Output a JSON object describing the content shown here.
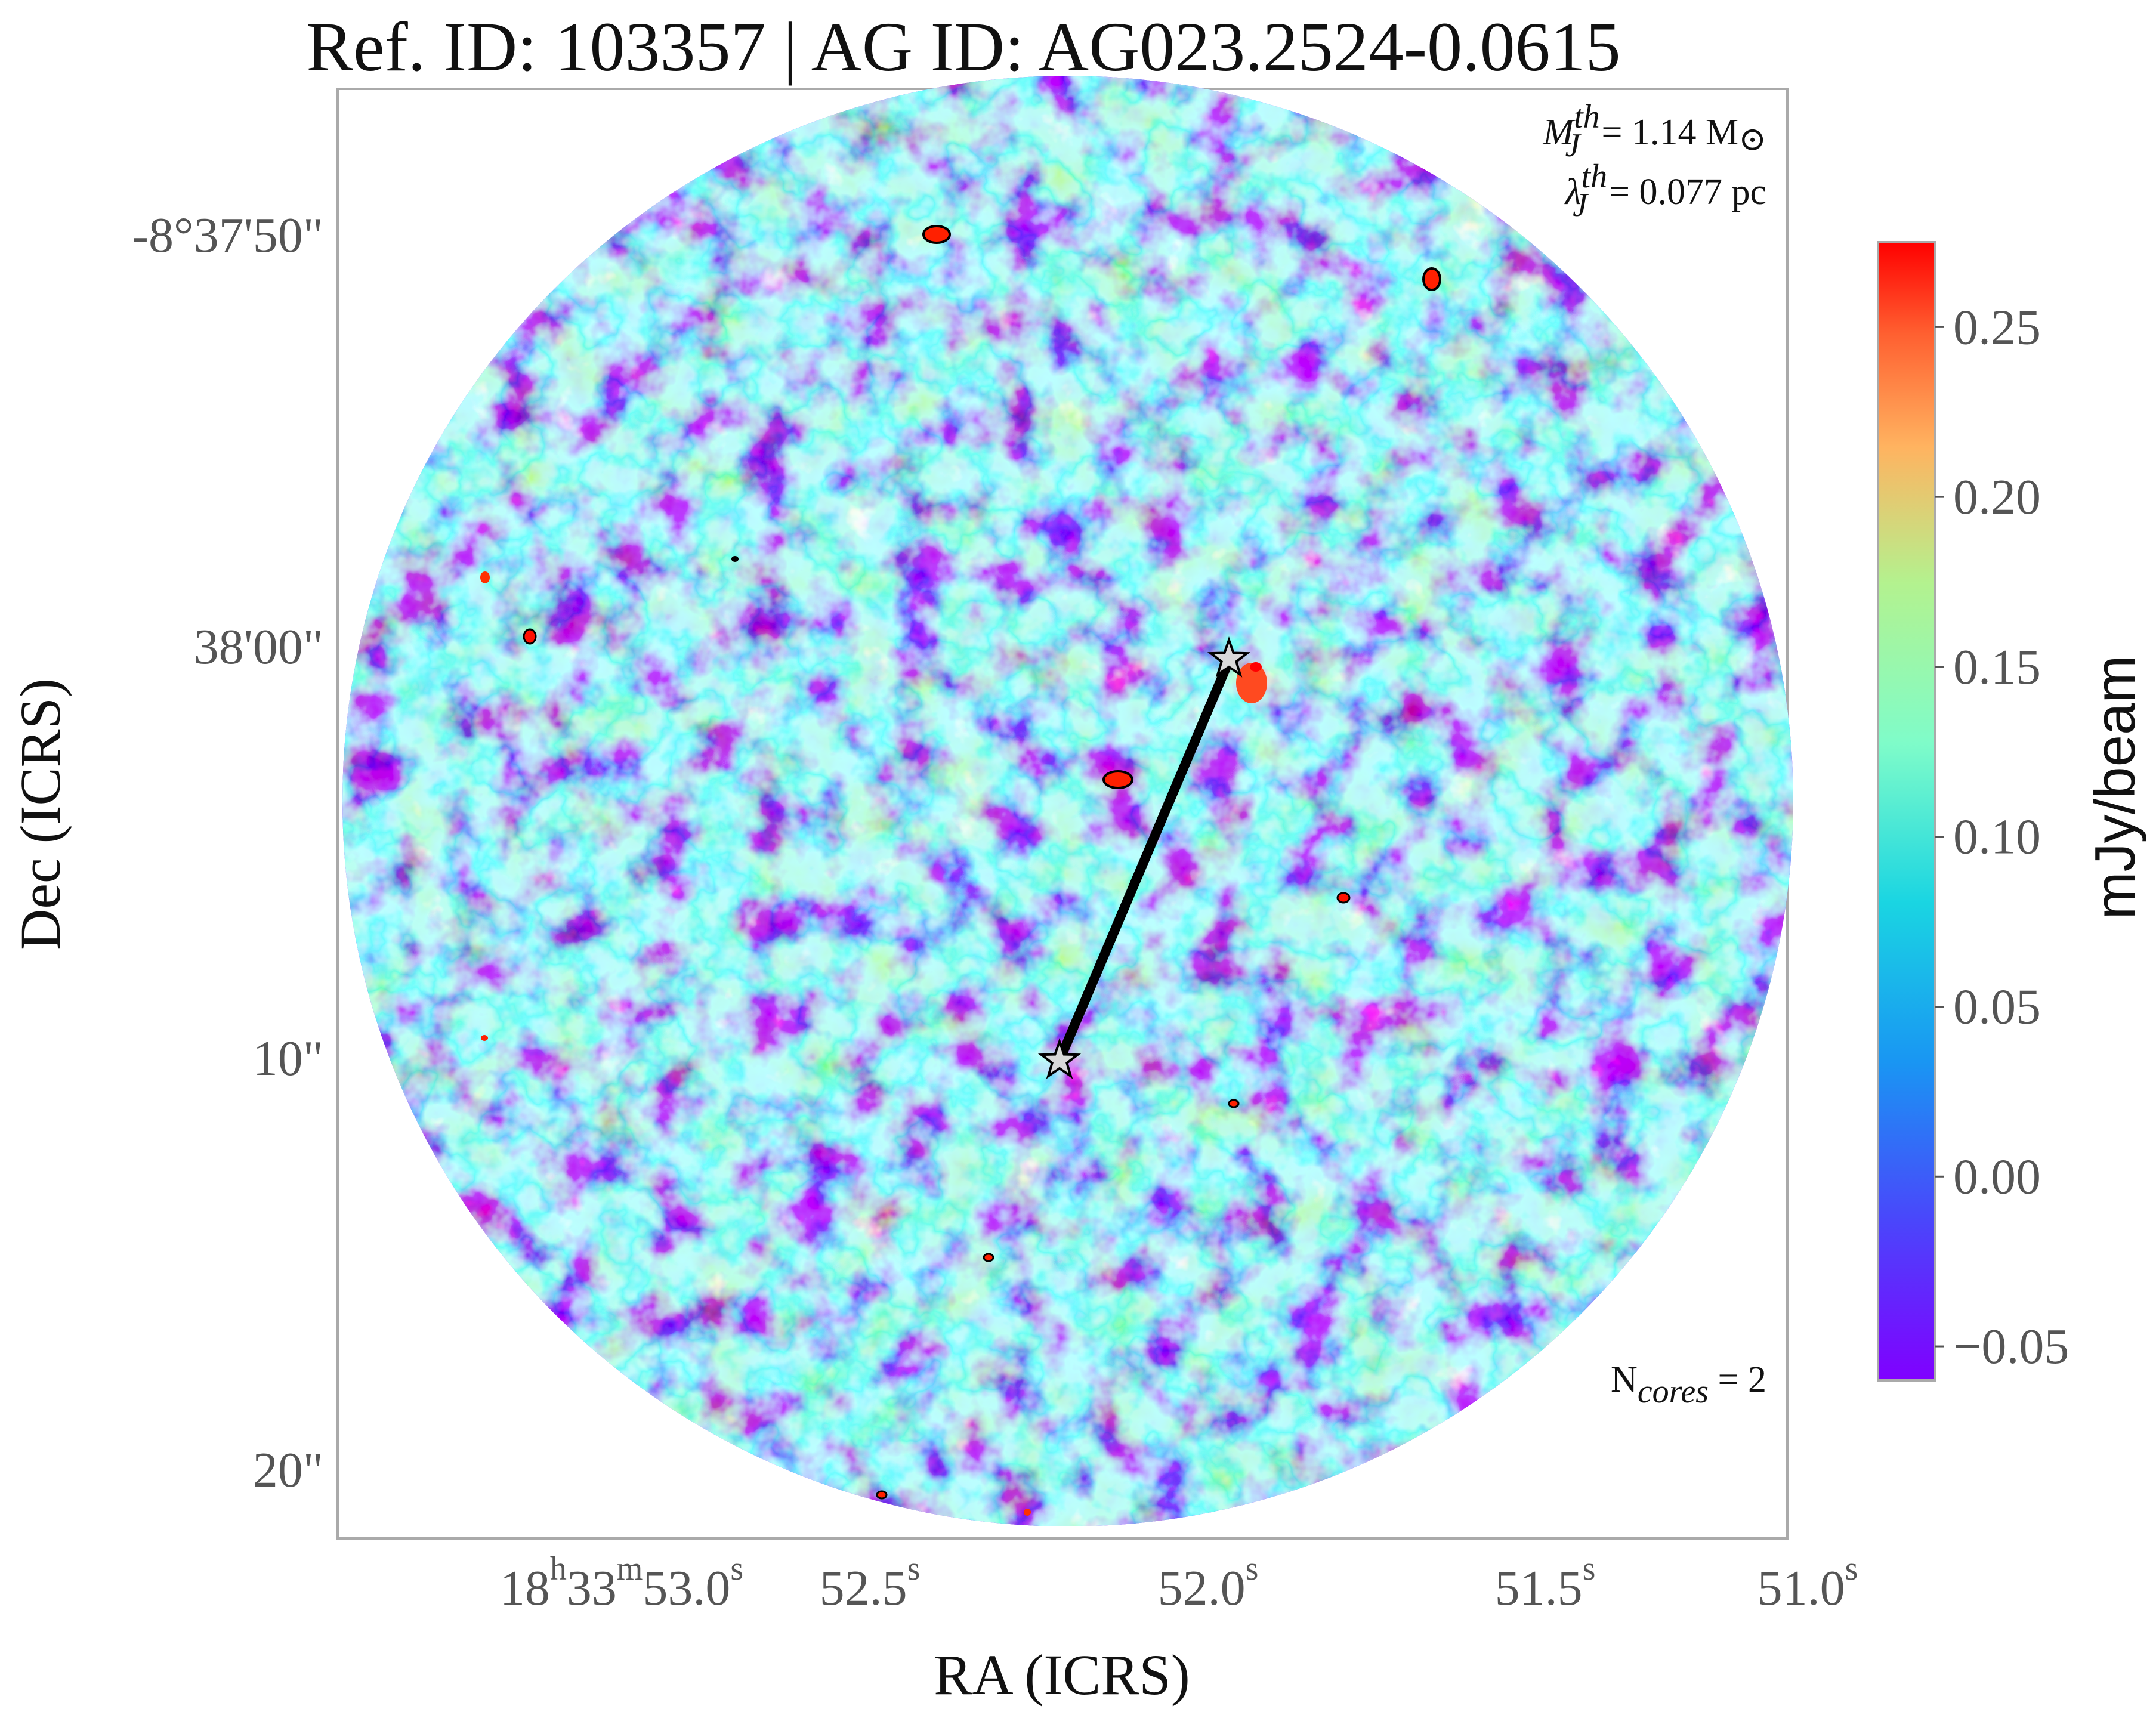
{
  "chart_data": {
    "type": "heatmap",
    "title": "Ref. ID: 103357 | AG ID: AG023.2524-0.0615",
    "xlabel": "RA (ICRS)",
    "ylabel": "Dec (ICRS)",
    "x_ticks": [
      {
        "h": "18",
        "m": "33",
        "s": "53.0"
      },
      {
        "s": "52.5"
      },
      {
        "s": "52.0"
      },
      {
        "s": "51.5"
      },
      {
        "s": "51.0"
      }
    ],
    "y_ticks": [
      "-8°37'50\"",
      "38'00\"",
      "10\"",
      "20\""
    ],
    "tick_symbols": {
      "h": "h",
      "m": "m",
      "s": "s"
    },
    "colorbar": {
      "label": "mJy/beam",
      "ticks": [
        "0.25",
        "0.20",
        "0.15",
        "0.10",
        "0.05",
        "0.00",
        "−0.05"
      ],
      "range": [
        -0.06,
        0.275
      ],
      "colormap": "rainbow"
    },
    "annotations": {
      "mj_symbol": "M",
      "mj_sup": "th",
      "mj_sub": "J",
      "mj_value": "= 1.14 M",
      "mj_sun": "⊙",
      "lj_symbol": "λ",
      "lj_sup": "th",
      "lj_sub": "J",
      "lj_value": "= 0.077 pc",
      "ncores_label": "N",
      "ncores_sub": "cores",
      "ncores_value": " = 2"
    },
    "cores": [
      {
        "ra": "18h33m51.91s",
        "dec": "-8°38'00.3\""
      },
      {
        "ra": "18h33m52.19s",
        "dec": "-8°38'10.0\""
      }
    ],
    "colors": {
      "low": "#8000ff",
      "mid": "#7fffd4",
      "high": "#ff0000",
      "frame": "#aaaaaa",
      "connector": "#000000"
    }
  }
}
